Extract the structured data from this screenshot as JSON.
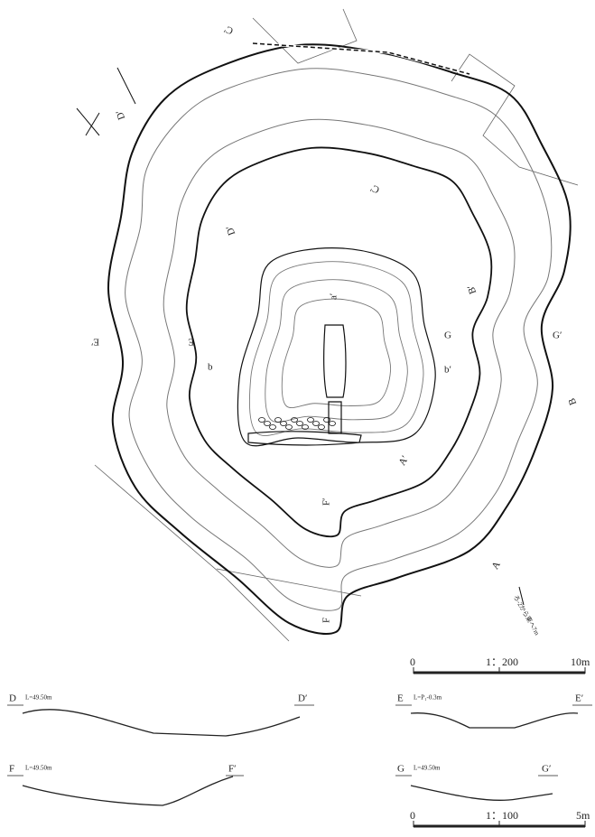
{
  "plan": {
    "labels": [
      "C′",
      "D′",
      "C′",
      "D′",
      "E′",
      "E",
      "B′",
      "a′",
      "G",
      "G′",
      "b",
      "b′",
      "B",
      "A′",
      "F′",
      "A",
      "F"
    ],
    "note": "ろ-2から東へ7m"
  },
  "sections": [
    {
      "start": "D",
      "level": "L=49.50m",
      "end": "D′"
    },
    {
      "start": "E",
      "level": "L=P₁-0.3m",
      "end": "E′"
    },
    {
      "start": "F",
      "level": "L=49.50m",
      "end": "F′"
    },
    {
      "start": "G",
      "level": "L=49.50m",
      "end": "G′"
    }
  ],
  "scale_bars": [
    {
      "zero": "0",
      "ratio": "1：200",
      "length": "10m"
    },
    {
      "zero": "0",
      "ratio": "1：100",
      "length": "5m"
    }
  ]
}
